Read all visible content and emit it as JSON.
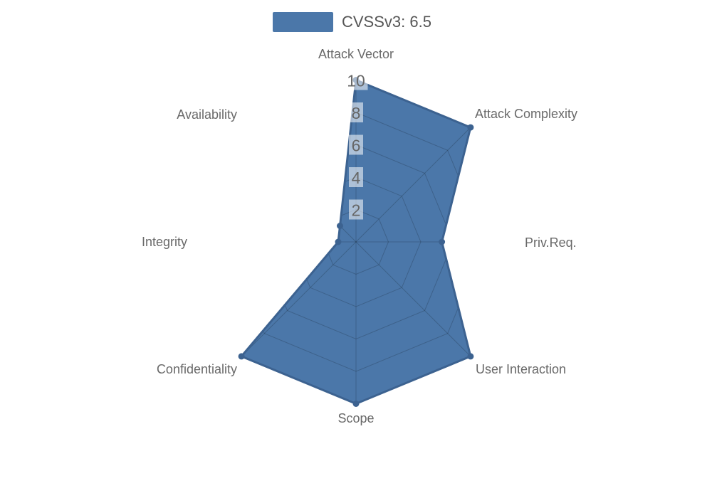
{
  "legend": {
    "label": "CVSSv3: 6.5"
  },
  "colors": {
    "fill": "#4b77a9",
    "stroke": "#3c6290",
    "marker": "#3c6290",
    "grid_line": "rgba(0,0,0,0.18)",
    "tick_text": "#666666",
    "tick_bg": "rgba(255,255,255,0.55)",
    "axis_label": "#696969",
    "legend_text": "#555555"
  },
  "chart_data": {
    "type": "radar",
    "title": "CVSSv3: 6.5",
    "legend_position": "top",
    "grid": "on-inside-polygon",
    "axis_start": "top",
    "direction": "clockwise",
    "max": 10,
    "ticks": [
      2,
      4,
      6,
      8,
      10
    ],
    "axes": [
      "Attack Vector",
      "Attack Complexity",
      "Priv.Req.",
      "User Interaction",
      "Scope",
      "Confidentiality",
      "Integrity",
      "Availability"
    ],
    "series": [
      {
        "name": "CVSSv3: 6.5",
        "values": [
          10,
          10,
          5.3,
          10,
          10,
          10,
          1.1,
          1.4
        ]
      }
    ]
  }
}
